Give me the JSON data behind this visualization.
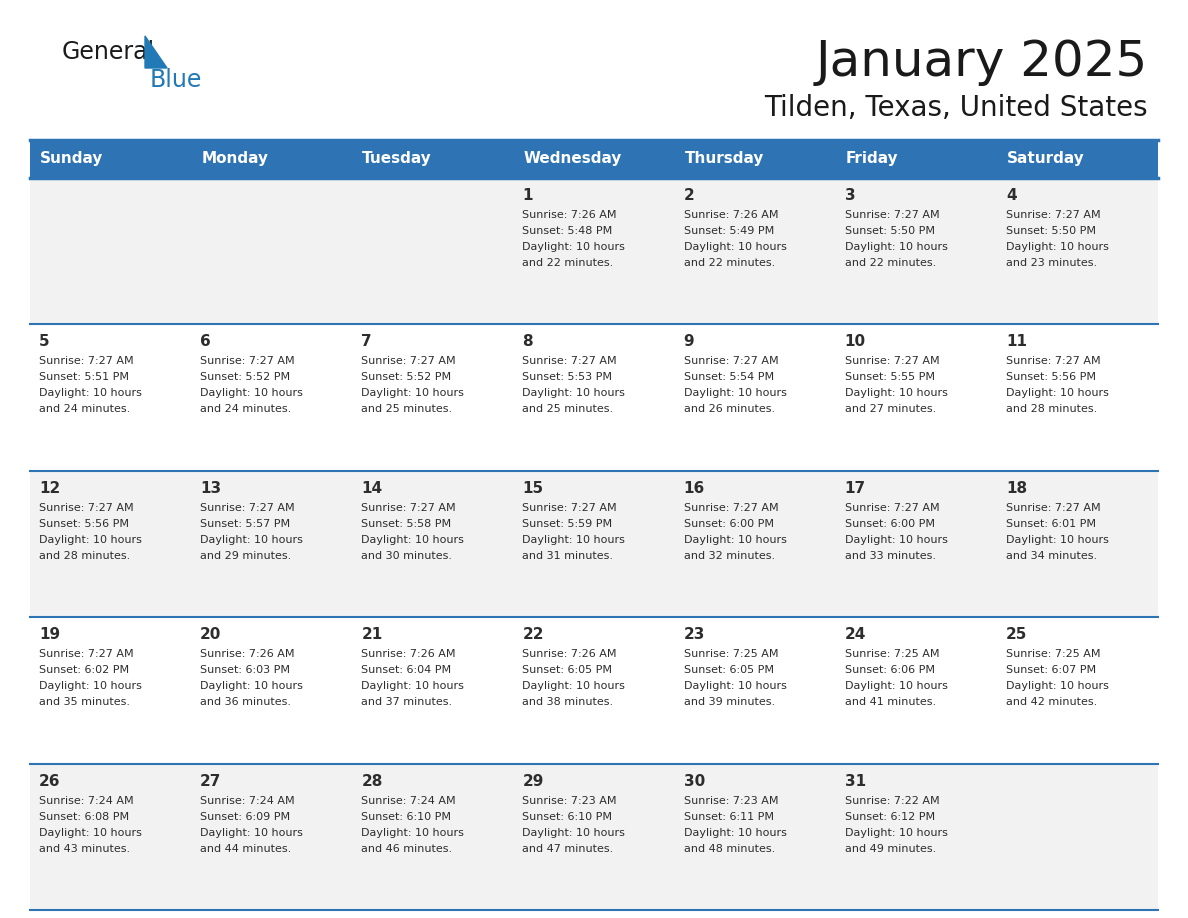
{
  "title": "January 2025",
  "subtitle": "Tilden, Texas, United States",
  "header_color": "#2E74B5",
  "header_text_color": "#FFFFFF",
  "cell_bg_even": "#F2F2F2",
  "cell_bg_odd": "#FFFFFF",
  "line_color": "#2E74B5",
  "text_color": "#2d2d2d",
  "day_headers": [
    "Sunday",
    "Monday",
    "Tuesday",
    "Wednesday",
    "Thursday",
    "Friday",
    "Saturday"
  ],
  "days": [
    {
      "day": 1,
      "col": 3,
      "row": 0,
      "sunrise": "7:26 AM",
      "sunset": "5:48 PM",
      "daylight_hours": 10,
      "daylight_minutes": 22
    },
    {
      "day": 2,
      "col": 4,
      "row": 0,
      "sunrise": "7:26 AM",
      "sunset": "5:49 PM",
      "daylight_hours": 10,
      "daylight_minutes": 22
    },
    {
      "day": 3,
      "col": 5,
      "row": 0,
      "sunrise": "7:27 AM",
      "sunset": "5:50 PM",
      "daylight_hours": 10,
      "daylight_minutes": 22
    },
    {
      "day": 4,
      "col": 6,
      "row": 0,
      "sunrise": "7:27 AM",
      "sunset": "5:50 PM",
      "daylight_hours": 10,
      "daylight_minutes": 23
    },
    {
      "day": 5,
      "col": 0,
      "row": 1,
      "sunrise": "7:27 AM",
      "sunset": "5:51 PM",
      "daylight_hours": 10,
      "daylight_minutes": 24
    },
    {
      "day": 6,
      "col": 1,
      "row": 1,
      "sunrise": "7:27 AM",
      "sunset": "5:52 PM",
      "daylight_hours": 10,
      "daylight_minutes": 24
    },
    {
      "day": 7,
      "col": 2,
      "row": 1,
      "sunrise": "7:27 AM",
      "sunset": "5:52 PM",
      "daylight_hours": 10,
      "daylight_minutes": 25
    },
    {
      "day": 8,
      "col": 3,
      "row": 1,
      "sunrise": "7:27 AM",
      "sunset": "5:53 PM",
      "daylight_hours": 10,
      "daylight_minutes": 25
    },
    {
      "day": 9,
      "col": 4,
      "row": 1,
      "sunrise": "7:27 AM",
      "sunset": "5:54 PM",
      "daylight_hours": 10,
      "daylight_minutes": 26
    },
    {
      "day": 10,
      "col": 5,
      "row": 1,
      "sunrise": "7:27 AM",
      "sunset": "5:55 PM",
      "daylight_hours": 10,
      "daylight_minutes": 27
    },
    {
      "day": 11,
      "col": 6,
      "row": 1,
      "sunrise": "7:27 AM",
      "sunset": "5:56 PM",
      "daylight_hours": 10,
      "daylight_minutes": 28
    },
    {
      "day": 12,
      "col": 0,
      "row": 2,
      "sunrise": "7:27 AM",
      "sunset": "5:56 PM",
      "daylight_hours": 10,
      "daylight_minutes": 28
    },
    {
      "day": 13,
      "col": 1,
      "row": 2,
      "sunrise": "7:27 AM",
      "sunset": "5:57 PM",
      "daylight_hours": 10,
      "daylight_minutes": 29
    },
    {
      "day": 14,
      "col": 2,
      "row": 2,
      "sunrise": "7:27 AM",
      "sunset": "5:58 PM",
      "daylight_hours": 10,
      "daylight_minutes": 30
    },
    {
      "day": 15,
      "col": 3,
      "row": 2,
      "sunrise": "7:27 AM",
      "sunset": "5:59 PM",
      "daylight_hours": 10,
      "daylight_minutes": 31
    },
    {
      "day": 16,
      "col": 4,
      "row": 2,
      "sunrise": "7:27 AM",
      "sunset": "6:00 PM",
      "daylight_hours": 10,
      "daylight_minutes": 32
    },
    {
      "day": 17,
      "col": 5,
      "row": 2,
      "sunrise": "7:27 AM",
      "sunset": "6:00 PM",
      "daylight_hours": 10,
      "daylight_minutes": 33
    },
    {
      "day": 18,
      "col": 6,
      "row": 2,
      "sunrise": "7:27 AM",
      "sunset": "6:01 PM",
      "daylight_hours": 10,
      "daylight_minutes": 34
    },
    {
      "day": 19,
      "col": 0,
      "row": 3,
      "sunrise": "7:27 AM",
      "sunset": "6:02 PM",
      "daylight_hours": 10,
      "daylight_minutes": 35
    },
    {
      "day": 20,
      "col": 1,
      "row": 3,
      "sunrise": "7:26 AM",
      "sunset": "6:03 PM",
      "daylight_hours": 10,
      "daylight_minutes": 36
    },
    {
      "day": 21,
      "col": 2,
      "row": 3,
      "sunrise": "7:26 AM",
      "sunset": "6:04 PM",
      "daylight_hours": 10,
      "daylight_minutes": 37
    },
    {
      "day": 22,
      "col": 3,
      "row": 3,
      "sunrise": "7:26 AM",
      "sunset": "6:05 PM",
      "daylight_hours": 10,
      "daylight_minutes": 38
    },
    {
      "day": 23,
      "col": 4,
      "row": 3,
      "sunrise": "7:25 AM",
      "sunset": "6:05 PM",
      "daylight_hours": 10,
      "daylight_minutes": 39
    },
    {
      "day": 24,
      "col": 5,
      "row": 3,
      "sunrise": "7:25 AM",
      "sunset": "6:06 PM",
      "daylight_hours": 10,
      "daylight_minutes": 41
    },
    {
      "day": 25,
      "col": 6,
      "row": 3,
      "sunrise": "7:25 AM",
      "sunset": "6:07 PM",
      "daylight_hours": 10,
      "daylight_minutes": 42
    },
    {
      "day": 26,
      "col": 0,
      "row": 4,
      "sunrise": "7:24 AM",
      "sunset": "6:08 PM",
      "daylight_hours": 10,
      "daylight_minutes": 43
    },
    {
      "day": 27,
      "col": 1,
      "row": 4,
      "sunrise": "7:24 AM",
      "sunset": "6:09 PM",
      "daylight_hours": 10,
      "daylight_minutes": 44
    },
    {
      "day": 28,
      "col": 2,
      "row": 4,
      "sunrise": "7:24 AM",
      "sunset": "6:10 PM",
      "daylight_hours": 10,
      "daylight_minutes": 46
    },
    {
      "day": 29,
      "col": 3,
      "row": 4,
      "sunrise": "7:23 AM",
      "sunset": "6:10 PM",
      "daylight_hours": 10,
      "daylight_minutes": 47
    },
    {
      "day": 30,
      "col": 4,
      "row": 4,
      "sunrise": "7:23 AM",
      "sunset": "6:11 PM",
      "daylight_hours": 10,
      "daylight_minutes": 48
    },
    {
      "day": 31,
      "col": 5,
      "row": 4,
      "sunrise": "7:22 AM",
      "sunset": "6:12 PM",
      "daylight_hours": 10,
      "daylight_minutes": 49
    }
  ],
  "logo_color_general": "#1a1a1a",
  "logo_color_blue": "#2179b5",
  "logo_triangle_color": "#2179b5",
  "title_fontsize": 36,
  "subtitle_fontsize": 20,
  "header_fontsize": 11,
  "day_num_fontsize": 11,
  "cell_text_fontsize": 8
}
